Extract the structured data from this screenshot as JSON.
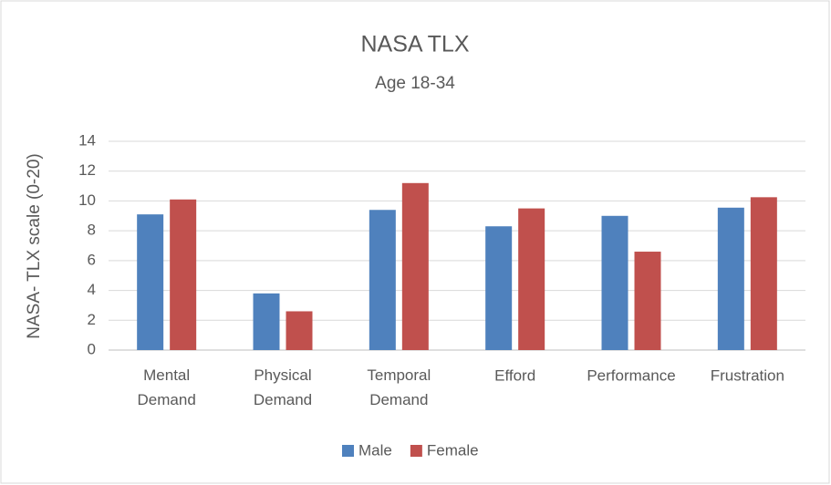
{
  "chart_data": {
    "type": "bar",
    "title": "NASA TLX",
    "subtitle": "Age 18-34",
    "y_label": "NASA- TLX scale (0-20)",
    "categories": [
      "Mental Demand",
      "Physical Demand",
      "Temporal Demand",
      "Efford",
      "Performance",
      "Frustration"
    ],
    "series": [
      {
        "name": "Male",
        "color": "#4f81bd",
        "values": [
          9.1,
          3.8,
          9.4,
          8.3,
          9.0,
          9.55
        ]
      },
      {
        "name": "Female",
        "color": "#c0504d",
        "values": [
          10.1,
          2.6,
          11.2,
          9.5,
          6.6,
          10.25
        ]
      }
    ],
    "ylim": [
      0,
      14
    ],
    "yticks": [
      0,
      2,
      4,
      6,
      8,
      10,
      12,
      14
    ],
    "grid": true,
    "legend": "bottom"
  }
}
